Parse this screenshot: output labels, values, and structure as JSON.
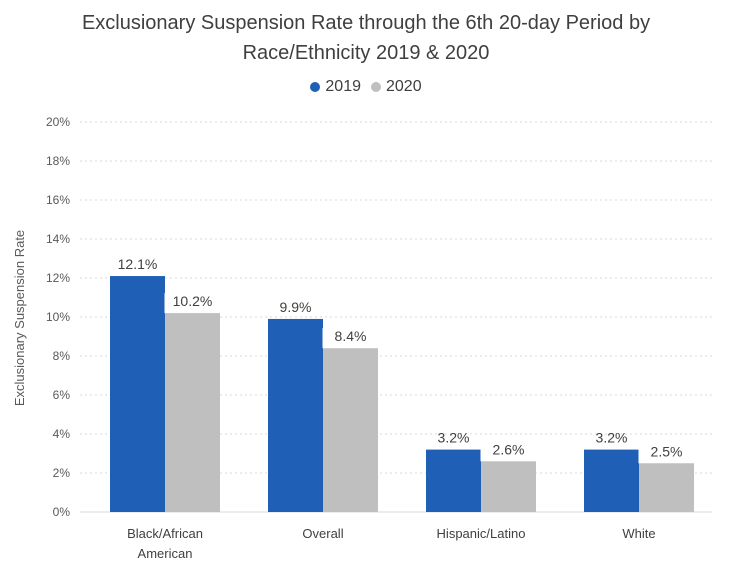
{
  "chart_data": {
    "type": "bar",
    "title_lines": [
      "Exclusionary Suspension Rate through the 6th 20-day Period by",
      "Race/Ethnicity 2019 & 2020"
    ],
    "xlabel": "",
    "ylabel": "Exclusionary Suspension Rate",
    "ylim": [
      0,
      20
    ],
    "yticks": [
      "0%",
      "2%",
      "4%",
      "6%",
      "8%",
      "10%",
      "12%",
      "14%",
      "16%",
      "18%",
      "20%"
    ],
    "categories": [
      [
        "Black/African",
        "American"
      ],
      [
        "Overall"
      ],
      [
        "Hispanic/Latino"
      ],
      [
        "White"
      ]
    ],
    "series": [
      {
        "name": "2019",
        "color": "#1f5fb5",
        "values": [
          12.1,
          9.9,
          3.2,
          3.2
        ],
        "labels": [
          "12.1%",
          "9.9%",
          "3.2%",
          "3.2%"
        ]
      },
      {
        "name": "2020",
        "color": "#bfbfbf",
        "values": [
          10.2,
          8.4,
          2.6,
          2.5
        ],
        "labels": [
          "10.2%",
          "8.4%",
          "2.6%",
          "2.5%"
        ]
      }
    ],
    "grid": true,
    "legend_position": "top-center"
  }
}
